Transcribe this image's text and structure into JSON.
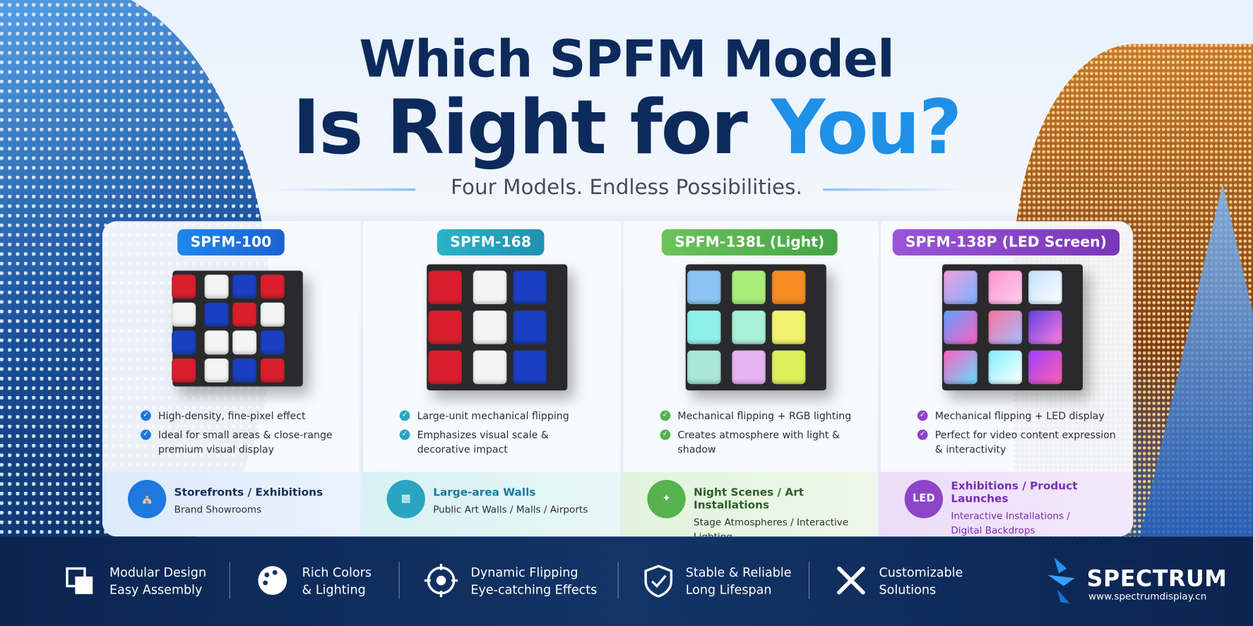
{
  "header": {
    "title_line1": "Which SPFM Model",
    "title_line2": "Is Right for",
    "title_highlight": "You?",
    "subtitle": "Four Models. Endless Possibilities."
  },
  "models": [
    {
      "name": "SPFM-100",
      "features": [
        "High-density, fine-pixel effect",
        "Ideal for small areas & close-range premium visual display"
      ],
      "application_title": "Storefronts / Exhibitions",
      "application_detail": "Brand Showrooms"
    },
    {
      "name": "SPFM-168",
      "features": [
        "Large-unit mechanical flipping",
        "Emphasizes visual scale & decorative impact"
      ],
      "application_title": "Large-area Walls",
      "application_detail": "Public Art Walls / Malls / Airports"
    },
    {
      "name": "SPFM-138L (Light)",
      "features": [
        "Mechanical flipping + RGB lighting",
        "Creates atmosphere with light & shadow"
      ],
      "application_title": "Night Scenes / Art Installations",
      "application_detail": "Stage Atmospheres / Interactive Lighting"
    },
    {
      "name": "SPFM-138P (LED Screen)",
      "features": [
        "Mechanical flipping + LED display",
        "Perfect for video content expression & interactivity"
      ],
      "application_title": "Exhibitions / Product Launches",
      "application_detail": "Interactive Installations / Digital Backdrops"
    }
  ],
  "features_bar": [
    {
      "line1": "Modular Design",
      "line2": "Easy Assembly"
    },
    {
      "line1": "Rich Colors",
      "line2": "& Lighting"
    },
    {
      "line1": "Dynamic Flipping",
      "line2": "Eye-catching Effects"
    },
    {
      "line1": "Stable & Reliable",
      "line2": "Long Lifespan"
    },
    {
      "line1": "Customizable",
      "line2": "Solutions"
    }
  ],
  "brand": {
    "name": "SPECTRUM",
    "url": "www.spectrumdisplay.cn"
  }
}
